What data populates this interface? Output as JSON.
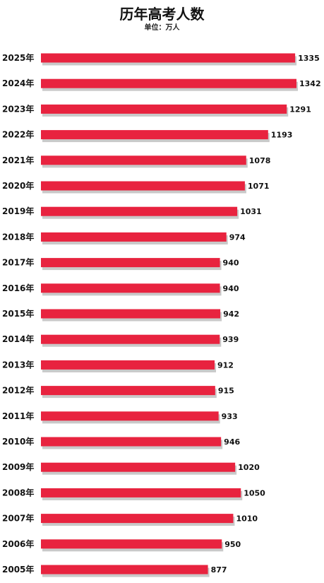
{
  "chart_data": {
    "type": "bar",
    "orientation": "horizontal",
    "title": "历年高考人数",
    "subtitle": "单位：万人",
    "categories": [
      "2025年",
      "2024年",
      "2023年",
      "2022年",
      "2021年",
      "2020年",
      "2019年",
      "2018年",
      "2017年",
      "2016年",
      "2015年",
      "2014年",
      "2013年",
      "2012年",
      "2011年",
      "2010年",
      "2009年",
      "2008年",
      "2007年",
      "2006年",
      "2005年"
    ],
    "values": [
      1335,
      1342,
      1291,
      1193,
      1078,
      1071,
      1031,
      974,
      940,
      940,
      942,
      939,
      912,
      915,
      933,
      946,
      1020,
      1050,
      1010,
      950,
      877
    ],
    "value_labels": [
      "1335",
      "1342",
      "1291",
      "1193",
      "1078",
      "1071",
      "1031",
      "974",
      "940",
      "940",
      "942",
      "939",
      "912",
      "915",
      "933",
      "946",
      "1020",
      "1050",
      "1010",
      "950",
      "877"
    ],
    "grid": false,
    "bar_color": "#e8233f",
    "shadow_color": "#c9c9c9"
  }
}
